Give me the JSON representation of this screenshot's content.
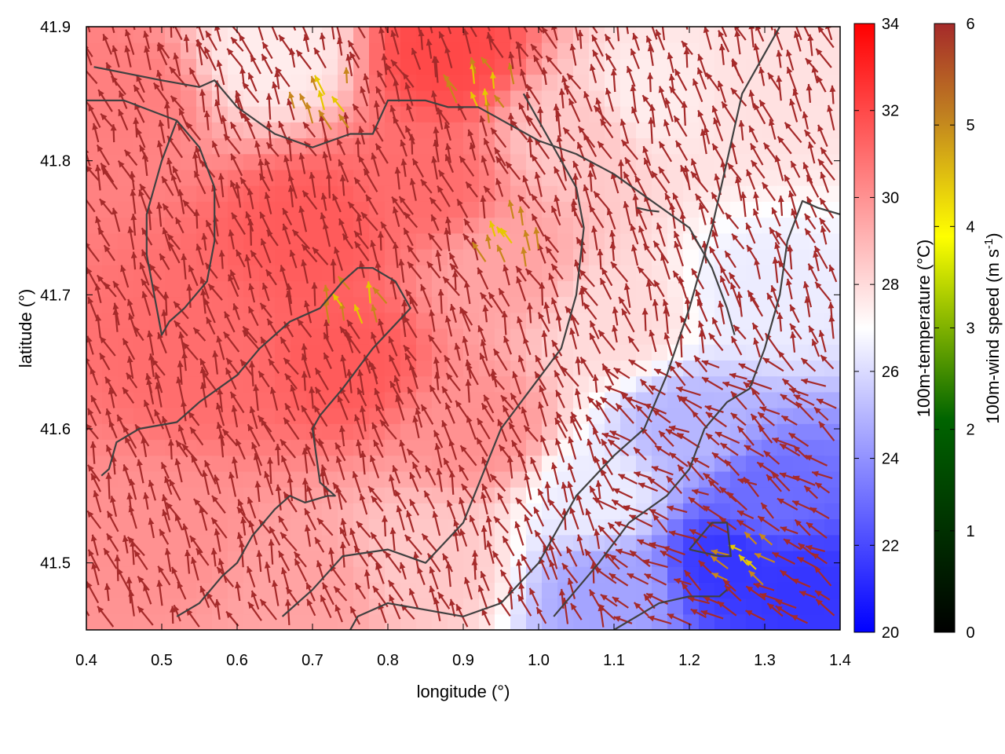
{
  "chart_data": {
    "type": "heatmap",
    "xlabel": "longitude (°)",
    "ylabel": "latitude (°)",
    "xlim": [
      0.4,
      1.4
    ],
    "ylim": [
      41.45,
      41.9
    ],
    "x_ticks": [
      0.4,
      0.5,
      0.6,
      0.7,
      0.8,
      0.9,
      1.0,
      1.1,
      1.2,
      1.3,
      1.4
    ],
    "x_tick_labels": [
      "0.4",
      "0.5",
      "0.6",
      "0.7",
      "0.8",
      "0.9",
      "1.0",
      "1.1",
      "1.2",
      "1.3",
      "1.4"
    ],
    "y_ticks": [
      41.5,
      41.6,
      41.7,
      41.8,
      41.9
    ],
    "y_tick_labels": [
      "41.5",
      "41.6",
      "41.7",
      "41.8",
      "41.9"
    ],
    "temperature_colorbar": {
      "label": "100m-temperature (°C)",
      "range": [
        20,
        34
      ],
      "ticks": [
        20,
        22,
        24,
        26,
        28,
        30,
        32,
        34
      ],
      "tick_labels": [
        "20",
        "22",
        "24",
        "26",
        "28",
        "30",
        "32",
        "34"
      ],
      "colors": [
        "#0000ff",
        "#ffffff",
        "#ff0000"
      ]
    },
    "wind_colorbar": {
      "label_main": "100m-wind speed (m s",
      "label_sup": "-1",
      "label_end": ")",
      "range": [
        0,
        6
      ],
      "ticks": [
        0,
        1,
        2,
        3,
        4,
        5,
        6
      ],
      "tick_labels": [
        "0",
        "1",
        "2",
        "3",
        "4",
        "5",
        "6"
      ],
      "colors": [
        "#000000",
        "#006400",
        "#ffff00",
        "#c08020",
        "#a52a2a"
      ]
    },
    "temperature_anchors": [
      {
        "lon": 0.45,
        "lat": 41.85,
        "t": 30.5
      },
      {
        "lon": 0.55,
        "lat": 41.65,
        "t": 31
      },
      {
        "lon": 0.5,
        "lat": 41.52,
        "t": 30
      },
      {
        "lon": 0.7,
        "lat": 41.75,
        "t": 31.5
      },
      {
        "lon": 0.75,
        "lat": 41.65,
        "t": 31.5
      },
      {
        "lon": 0.65,
        "lat": 41.88,
        "t": 27.5
      },
      {
        "lon": 0.88,
        "lat": 41.88,
        "t": 32
      },
      {
        "lon": 0.85,
        "lat": 41.78,
        "t": 31
      },
      {
        "lon": 0.95,
        "lat": 41.72,
        "t": 29.5
      },
      {
        "lon": 0.92,
        "lat": 41.6,
        "t": 30
      },
      {
        "lon": 1.05,
        "lat": 41.82,
        "t": 28.5
      },
      {
        "lon": 1.1,
        "lat": 41.68,
        "t": 28
      },
      {
        "lon": 1.15,
        "lat": 41.85,
        "t": 27.5
      },
      {
        "lon": 1.3,
        "lat": 41.85,
        "t": 27.8
      },
      {
        "lon": 1.3,
        "lat": 41.7,
        "t": 26.5
      },
      {
        "lon": 1.08,
        "lat": 41.55,
        "t": 26.5
      },
      {
        "lon": 1.2,
        "lat": 41.6,
        "t": 25
      },
      {
        "lon": 1.3,
        "lat": 41.55,
        "t": 23
      },
      {
        "lon": 1.25,
        "lat": 41.5,
        "t": 21.5
      },
      {
        "lon": 1.35,
        "lat": 41.48,
        "t": 21.5
      },
      {
        "lon": 1.1,
        "lat": 41.48,
        "t": 24.5
      },
      {
        "lon": 0.85,
        "lat": 41.5,
        "t": 28.5
      },
      {
        "lon": 0.7,
        "lat": 41.48,
        "t": 29.5
      }
    ],
    "contours": [
      [
        [
          0.41,
          41.87
        ],
        [
          0.5,
          41.86
        ],
        [
          0.55,
          41.855
        ],
        [
          0.57,
          41.86
        ],
        [
          0.6,
          41.84
        ],
        [
          0.65,
          41.82
        ],
        [
          0.7,
          41.81
        ],
        [
          0.75,
          41.82
        ],
        [
          0.78,
          41.82
        ],
        [
          0.8,
          41.845
        ],
        [
          0.85,
          41.845
        ],
        [
          0.88,
          41.84
        ],
        [
          0.92,
          41.84
        ],
        [
          1.0,
          41.815
        ],
        [
          1.05,
          41.805
        ],
        [
          1.1,
          41.79
        ],
        [
          1.2,
          41.75
        ],
        [
          1.23,
          41.72
        ],
        [
          1.25,
          41.69
        ],
        [
          1.26,
          41.67
        ]
      ],
      [
        [
          0.4,
          41.845
        ],
        [
          0.45,
          41.845
        ],
        [
          0.52,
          41.83
        ],
        [
          0.55,
          41.81
        ],
        [
          0.57,
          41.78
        ],
        [
          0.57,
          41.74
        ],
        [
          0.56,
          41.71
        ],
        [
          0.53,
          41.69
        ],
        [
          0.51,
          41.68
        ],
        [
          0.5,
          41.67
        ],
        [
          0.49,
          41.7
        ],
        [
          0.48,
          41.73
        ],
        [
          0.48,
          41.76
        ],
        [
          0.5,
          41.8
        ],
        [
          0.52,
          41.83
        ]
      ],
      [
        [
          0.52,
          41.46
        ],
        [
          0.55,
          41.47
        ],
        [
          0.58,
          41.49
        ],
        [
          0.6,
          41.5
        ],
        [
          0.62,
          41.52
        ],
        [
          0.65,
          41.54
        ],
        [
          0.67,
          41.55
        ],
        [
          0.69,
          41.545
        ],
        [
          0.72,
          41.55
        ],
        [
          0.73,
          41.55
        ],
        [
          0.71,
          41.56
        ],
        [
          0.7,
          41.6
        ],
        [
          0.71,
          41.61
        ],
        [
          0.74,
          41.63
        ],
        [
          0.78,
          41.66
        ],
        [
          0.83,
          41.69
        ],
        [
          0.81,
          41.71
        ],
        [
          0.78,
          41.72
        ],
        [
          0.76,
          41.72
        ],
        [
          0.74,
          41.71
        ],
        [
          0.71,
          41.69
        ],
        [
          0.67,
          41.68
        ],
        [
          0.63,
          41.66
        ],
        [
          0.6,
          41.64
        ],
        [
          0.55,
          41.62
        ],
        [
          0.52,
          41.605
        ],
        [
          0.47,
          41.6
        ],
        [
          0.44,
          41.59
        ],
        [
          0.43,
          41.57
        ],
        [
          0.42,
          41.565
        ]
      ],
      [
        [
          0.66,
          41.46
        ],
        [
          0.7,
          41.48
        ],
        [
          0.74,
          41.505
        ],
        [
          0.8,
          41.51
        ],
        [
          0.85,
          41.5
        ],
        [
          0.9,
          41.53
        ],
        [
          0.95,
          41.6
        ],
        [
          0.99,
          41.63
        ],
        [
          1.03,
          41.66
        ],
        [
          1.05,
          41.7
        ],
        [
          1.06,
          41.75
        ],
        [
          1.05,
          41.78
        ],
        [
          1.03,
          41.8
        ],
        [
          1.0,
          41.83
        ],
        [
          0.98,
          41.85
        ]
      ],
      [
        [
          0.75,
          41.45
        ],
        [
          0.76,
          41.46
        ],
        [
          0.8,
          41.47
        ],
        [
          0.9,
          41.46
        ],
        [
          0.95,
          41.47
        ],
        [
          1.0,
          41.5
        ],
        [
          1.05,
          41.55
        ],
        [
          1.1,
          41.58
        ],
        [
          1.14,
          41.6
        ],
        [
          1.17,
          41.64
        ],
        [
          1.2,
          41.69
        ],
        [
          1.23,
          41.75
        ],
        [
          1.25,
          41.8
        ],
        [
          1.27,
          41.85
        ],
        [
          1.3,
          41.88
        ],
        [
          1.32,
          41.9
        ]
      ],
      [
        [
          1.02,
          41.46
        ],
        [
          1.05,
          41.48
        ],
        [
          1.08,
          41.5
        ],
        [
          1.12,
          41.53
        ],
        [
          1.17,
          41.55
        ],
        [
          1.2,
          41.57
        ],
        [
          1.22,
          41.6
        ],
        [
          1.25,
          41.62
        ],
        [
          1.28,
          41.63
        ],
        [
          1.3,
          41.66
        ],
        [
          1.32,
          41.7
        ],
        [
          1.33,
          41.74
        ],
        [
          1.35,
          41.77
        ],
        [
          1.37,
          41.765
        ],
        [
          1.4,
          41.76
        ]
      ],
      [
        [
          1.1,
          41.45
        ],
        [
          1.13,
          41.46
        ],
        [
          1.16,
          41.47
        ],
        [
          1.2,
          41.475
        ],
        [
          1.24,
          41.475
        ],
        [
          1.25,
          41.48
        ]
      ],
      [
        [
          1.2,
          41.51
        ],
        [
          1.23,
          41.53
        ],
        [
          1.25,
          41.53
        ],
        [
          1.255,
          41.505
        ],
        [
          1.24,
          41.505
        ],
        [
          1.2,
          41.51
        ]
      ],
      [
        [
          1.13,
          41.765
        ],
        [
          1.145,
          41.763
        ],
        [
          1.16,
          41.762
        ]
      ]
    ]
  }
}
